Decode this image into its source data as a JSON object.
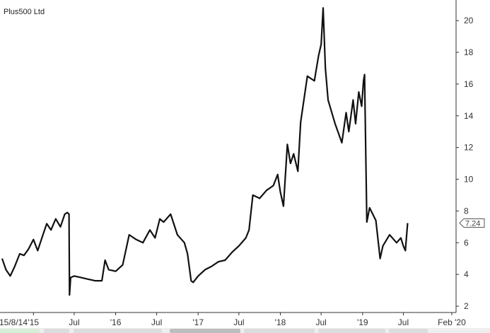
{
  "chart_data": {
    "type": "line",
    "title": "Plus500 Ltd",
    "last_value_label": "7.24",
    "y_ticks": [
      2,
      4,
      6,
      8,
      10,
      12,
      14,
      16,
      18,
      20
    ],
    "y_tick_labels": [
      "2",
      "4",
      "6",
      "8",
      "10",
      "12",
      "14",
      "16",
      "18",
      "20"
    ],
    "ylim": [
      1.6,
      21.3
    ],
    "xlim": [
      "2014-08-15",
      "2020-02-20"
    ],
    "x_ticks": [
      {
        "label": "15/8/14",
        "date": "2014-08-15"
      },
      {
        "label": "'15",
        "date": "2015-01-01"
      },
      {
        "label": "Jul",
        "date": "2015-07-01"
      },
      {
        "label": "'16",
        "date": "2016-01-01"
      },
      {
        "label": "Jul",
        "date": "2016-07-01"
      },
      {
        "label": "'17",
        "date": "2017-01-01"
      },
      {
        "label": "Jul",
        "date": "2017-07-01"
      },
      {
        "label": "'18",
        "date": "2018-01-01"
      },
      {
        "label": "Jul",
        "date": "2018-07-01"
      },
      {
        "label": "'19",
        "date": "2019-01-01"
      },
      {
        "label": "Jul",
        "date": "2019-07-01"
      },
      {
        "label": "Feb '20",
        "date": "2020-02-01"
      }
    ],
    "series": [
      {
        "color": "#111111",
        "x": [
          "2014-08-15",
          "2014-09-01",
          "2014-09-20",
          "2014-10-10",
          "2014-11-01",
          "2014-11-20",
          "2014-12-10",
          "2015-01-01",
          "2015-01-20",
          "2015-02-10",
          "2015-03-01",
          "2015-03-20",
          "2015-04-10",
          "2015-05-01",
          "2015-05-20",
          "2015-06-01",
          "2015-06-08",
          "2015-06-10",
          "2015-06-15",
          "2015-07-01",
          "2015-08-01",
          "2015-09-01",
          "2015-10-01",
          "2015-11-01",
          "2015-11-15",
          "2015-12-01",
          "2016-01-01",
          "2016-02-01",
          "2016-03-01",
          "2016-04-01",
          "2016-05-01",
          "2016-06-01",
          "2016-06-24",
          "2016-07-15",
          "2016-08-01",
          "2016-09-01",
          "2016-10-01",
          "2016-11-01",
          "2016-11-15",
          "2016-12-01",
          "2016-12-10",
          "2017-01-01",
          "2017-02-01",
          "2017-03-01",
          "2017-04-01",
          "2017-05-01",
          "2017-06-01",
          "2017-07-01",
          "2017-08-01",
          "2017-08-15",
          "2017-09-01",
          "2017-10-01",
          "2017-11-01",
          "2017-12-01",
          "2017-12-20",
          "2018-01-01",
          "2018-01-15",
          "2018-02-01",
          "2018-02-15",
          "2018-03-01",
          "2018-03-20",
          "2018-04-01",
          "2018-05-01",
          "2018-06-01",
          "2018-06-20",
          "2018-07-01",
          "2018-07-10",
          "2018-07-20",
          "2018-08-01",
          "2018-09-01",
          "2018-10-01",
          "2018-10-20",
          "2018-11-01",
          "2018-11-20",
          "2018-12-01",
          "2018-12-15",
          "2018-12-28",
          "2019-01-05",
          "2019-01-10",
          "2019-01-20",
          "2019-02-01",
          "2019-03-01",
          "2019-03-20",
          "2019-04-01",
          "2019-05-01",
          "2019-06-01",
          "2019-06-20",
          "2019-07-01",
          "2019-07-10",
          "2019-07-20"
        ],
        "y": [
          5.0,
          4.3,
          3.9,
          4.5,
          5.3,
          5.2,
          5.6,
          6.2,
          5.5,
          6.4,
          7.2,
          6.8,
          7.5,
          7.0,
          7.8,
          7.9,
          7.8,
          2.7,
          3.8,
          3.9,
          3.8,
          3.7,
          3.6,
          3.6,
          4.9,
          4.3,
          4.2,
          4.6,
          6.5,
          6.2,
          6.0,
          6.8,
          6.3,
          7.5,
          7.3,
          7.8,
          6.5,
          6.0,
          5.3,
          3.6,
          3.5,
          3.9,
          4.3,
          4.5,
          4.8,
          4.9,
          5.4,
          5.8,
          6.3,
          6.8,
          9.0,
          8.8,
          9.3,
          9.6,
          10.3,
          9.2,
          8.3,
          12.2,
          11.0,
          11.6,
          10.5,
          13.6,
          16.5,
          16.2,
          17.8,
          18.5,
          20.8,
          17.0,
          15.0,
          13.5,
          12.3,
          14.2,
          13.0,
          15.0,
          13.5,
          15.5,
          14.6,
          16.2,
          16.6,
          7.3,
          8.2,
          7.4,
          5.0,
          5.8,
          6.5,
          6.0,
          6.3,
          5.8,
          5.5,
          7.24
        ]
      }
    ]
  }
}
